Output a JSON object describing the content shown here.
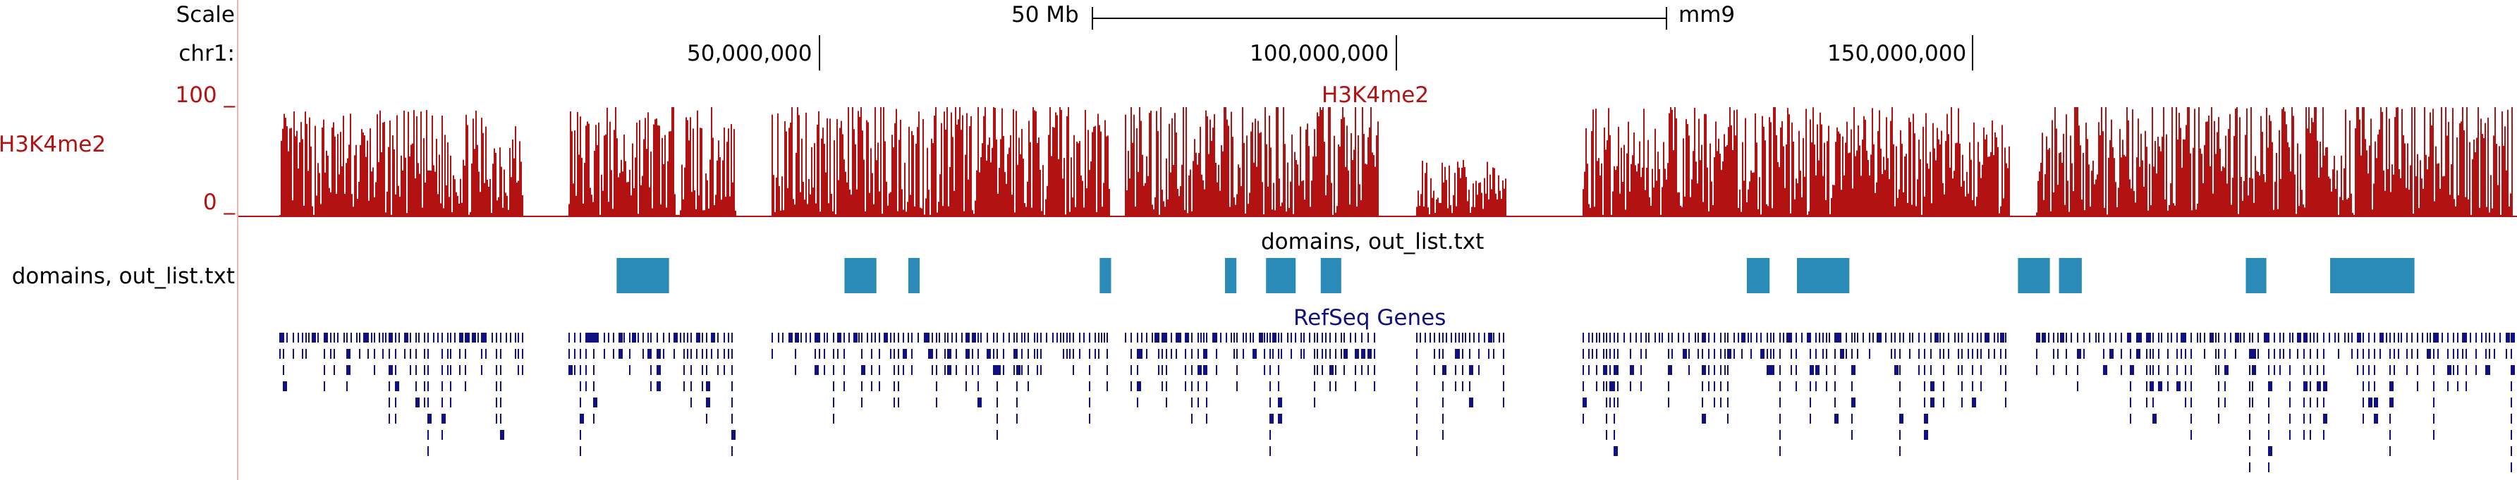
{
  "ruler": {
    "scale_label": "Scale",
    "scale_bar_label": "50 Mb",
    "assembly": "mm9",
    "chrom_label": "chr1:",
    "ticks": [
      "50,000,000",
      "100,000,000",
      "150,000,000"
    ]
  },
  "tracks": {
    "h3k4me2": {
      "side_label": "H3K4me2",
      "center_label": "H3K4me2",
      "y_max_label": "100 _",
      "y_min_label": "0 _",
      "color": "#b31212",
      "y_range": [
        0,
        100
      ]
    },
    "domains": {
      "side_label": "domains, out_list.txt",
      "center_label": "domains, out_list.txt",
      "color": "#2a8ab8",
      "blocks": [
        {
          "start": 0.166,
          "end": 0.189
        },
        {
          "start": 0.266,
          "end": 0.28
        },
        {
          "start": 0.294,
          "end": 0.299
        },
        {
          "start": 0.378,
          "end": 0.383
        },
        {
          "start": 0.433,
          "end": 0.438
        },
        {
          "start": 0.451,
          "end": 0.464
        },
        {
          "start": 0.475,
          "end": 0.484
        },
        {
          "start": 0.662,
          "end": 0.672
        },
        {
          "start": 0.684,
          "end": 0.707
        },
        {
          "start": 0.781,
          "end": 0.795
        },
        {
          "start": 0.799,
          "end": 0.809
        },
        {
          "start": 0.881,
          "end": 0.89
        },
        {
          "start": 0.918,
          "end": 0.955
        }
      ]
    },
    "refseq": {
      "center_label": "RefSeq Genes",
      "color": "#101080"
    }
  },
  "coverage_regions": [
    {
      "start": 0.018,
      "end": 0.125,
      "level": 0.75
    },
    {
      "start": 0.145,
      "end": 0.218,
      "level": 0.8
    },
    {
      "start": 0.234,
      "end": 0.382,
      "level": 0.85
    },
    {
      "start": 0.389,
      "end": 0.5,
      "level": 0.85
    },
    {
      "start": 0.517,
      "end": 0.556,
      "level": 0.4
    },
    {
      "start": 0.59,
      "end": 0.777,
      "level": 0.8
    },
    {
      "start": 0.789,
      "end": 0.998,
      "level": 0.85
    }
  ]
}
